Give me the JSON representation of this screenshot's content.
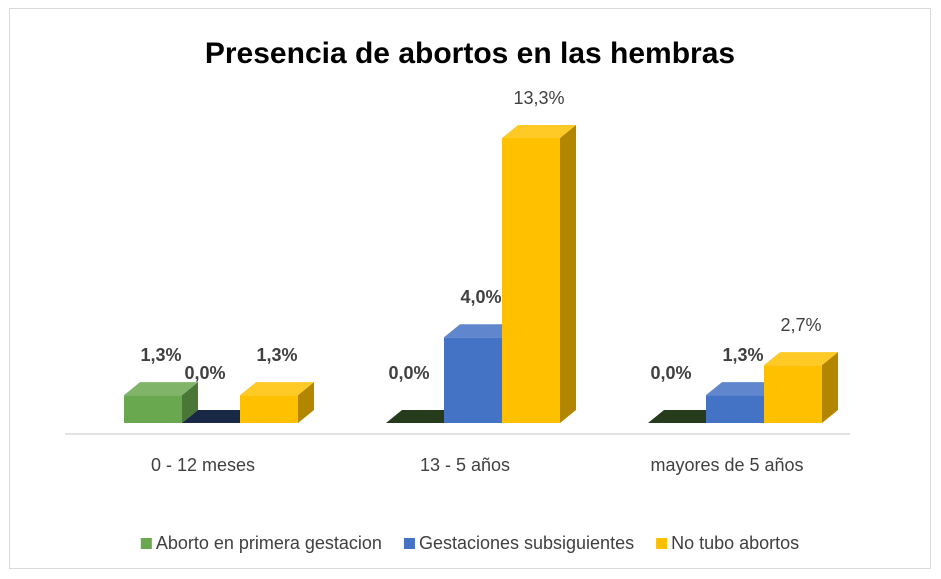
{
  "chart_data": {
    "type": "bar3d",
    "title": "Presencia de abortos en las hembras",
    "categories": [
      "0 - 12 meses",
      "13 - 5 años",
      "mayores de 5 años"
    ],
    "series": [
      {
        "name": "Aborto en primera gestacion",
        "color": "#6aa84f",
        "values": [
          1.3,
          0,
          0
        ],
        "value_labels": [
          "1,3%",
          "0,0%",
          "0,0%"
        ]
      },
      {
        "name": "Gestaciones subsiguientes",
        "color": "#4472c4",
        "values": [
          0,
          4.0,
          1.3
        ],
        "value_labels": [
          "0,0%",
          "4,0%",
          "1,3%"
        ]
      },
      {
        "name": "No tubo abortos",
        "color": "#ffc000",
        "values": [
          1.3,
          13.3,
          2.7
        ],
        "value_labels": [
          "1,3%",
          "13,3%",
          "2,7%"
        ]
      }
    ],
    "legend": "bottom"
  }
}
